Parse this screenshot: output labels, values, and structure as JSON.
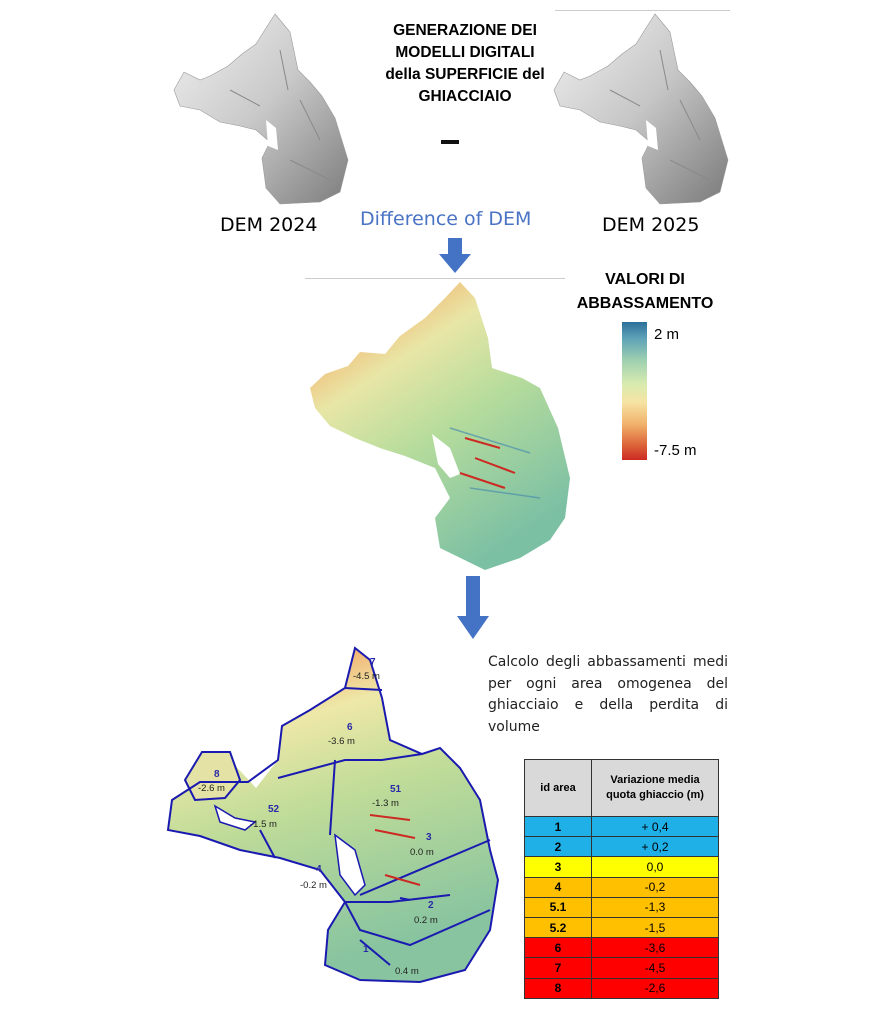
{
  "title_lines": [
    "GENERAZIONE DEI",
    "MODELLI DIGITALI",
    "della SUPERFICIE del",
    "GHIACCIAIO"
  ],
  "dem_left_label": "DEM 2024",
  "dem_right_label": "DEM 2025",
  "difference_label": "Difference of DEM",
  "scale": {
    "title_line1": "VALORI DI",
    "title_line2": "ABBASSAMENTO",
    "max_label": "2 m",
    "min_label": "-7.5 m"
  },
  "calc_text": "Calcolo degli abbassamenti medi per ogni area omogenea del ghiacciaio e della perdita di volume",
  "map_areas": [
    {
      "id": "7",
      "value": "-4.5 m"
    },
    {
      "id": "6",
      "value": "-3.6 m"
    },
    {
      "id": "8",
      "value": "-2.6 m"
    },
    {
      "id": "52",
      "value": "-1.5 m"
    },
    {
      "id": "51",
      "value": "-1.3 m"
    },
    {
      "id": "3",
      "value": "0.0 m"
    },
    {
      "id": "4",
      "value": "-0.2 m"
    },
    {
      "id": "2",
      "value": "0.2 m"
    },
    {
      "id": "1",
      "value": "0.4 m"
    }
  ],
  "table": {
    "header_id": "id area",
    "header_value_line1": "Variazione media",
    "header_value_line2": "quota ghiaccio (m)",
    "rows": [
      {
        "id": "1",
        "value": "+ 0,4",
        "color": "#1fb0e8"
      },
      {
        "id": "2",
        "value": "+ 0,2",
        "color": "#1fb0e8"
      },
      {
        "id": "3",
        "value": "0,0",
        "color": "#ffff00"
      },
      {
        "id": "4",
        "value": "-0,2",
        "color": "#ffc000"
      },
      {
        "id": "5.1",
        "value": "-1,3",
        "color": "#ffc000"
      },
      {
        "id": "5.2",
        "value": "-1,5",
        "color": "#ffc000"
      },
      {
        "id": "6",
        "value": "-3,6",
        "color": "#ff0000"
      },
      {
        "id": "7",
        "value": "-4,5",
        "color": "#ff0000"
      },
      {
        "id": "8",
        "value": "-2,6",
        "color": "#ff0000"
      }
    ]
  },
  "colors": {
    "arrow": "#4472c4",
    "boundary": "#1a1ab0"
  }
}
